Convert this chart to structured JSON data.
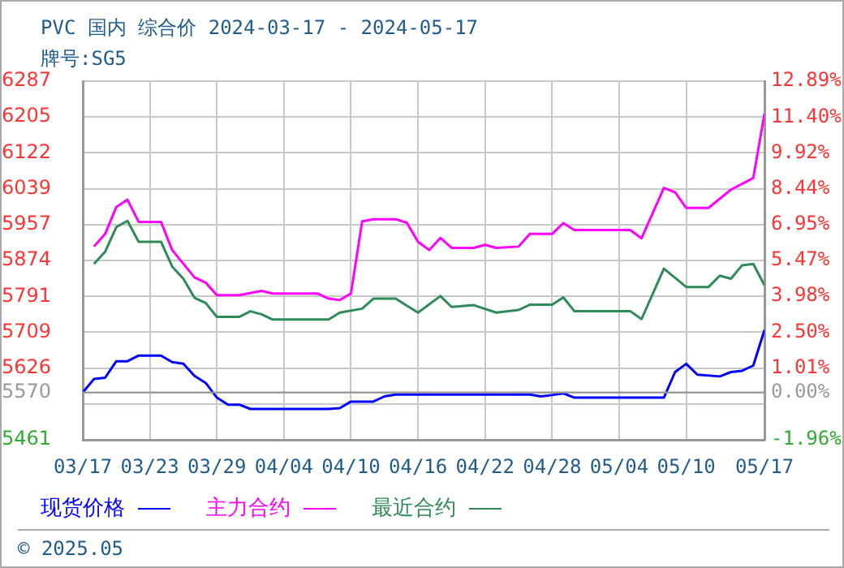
{
  "chart_data": {
    "type": "line",
    "title": "PVC 国内 综合价 2024-03-17 - 2024-05-17",
    "subtitle": "牌号:SG5",
    "series": [
      {
        "name": "现货价格",
        "color": "#0000ff",
        "x": [
          "--03-17",
          "--03-18",
          "--03-19",
          "--03-20",
          "--03-21",
          "--03-22",
          "--03-24",
          "--03-25",
          "--03-26",
          "--03-27",
          "--03-28",
          "--03-29",
          "--03-30",
          "--03-31",
          "--04-01",
          "--04-08",
          "--04-09",
          "--04-10",
          "--04-12",
          "--04-13",
          "--04-14",
          "--04-17",
          "--04-26",
          "--04-27",
          "--04-28",
          "--04-29",
          "--04-30",
          "--05-08",
          "--05-09",
          "--05-10",
          "--05-11",
          "--05-13",
          "--05-14",
          "--05-15",
          "--05-16",
          "--05-17"
        ],
        "values": [
          5570,
          5601,
          5604,
          5642,
          5642,
          5655,
          5655,
          5640,
          5636,
          5608,
          5592,
          5558,
          5542,
          5542,
          5532,
          5532,
          5534,
          5549,
          5549,
          5561,
          5565,
          5565,
          5565,
          5561,
          5564,
          5568,
          5558,
          5558,
          5617,
          5636,
          5611,
          5607,
          5617,
          5620,
          5632,
          5714
        ]
      },
      {
        "name": "主力合约",
        "color": "#ff00ff",
        "x": [
          "--03-18",
          "--03-19",
          "--03-20",
          "--03-21",
          "--03-22",
          "--03-24",
          "--03-25",
          "--03-27",
          "--03-28",
          "--03-29",
          "--03-31",
          "--04-02",
          "--04-03",
          "--04-07",
          "--04-08",
          "--04-09",
          "--04-10",
          "--04-11",
          "--04-12",
          "--04-14",
          "--04-15",
          "--04-16",
          "--04-17",
          "--04-18",
          "--04-19",
          "--04-21",
          "--04-22",
          "--04-23",
          "--04-25",
          "--04-26",
          "--04-28",
          "--04-29",
          "--04-30",
          "--05-05",
          "--05-06",
          "--05-08",
          "--05-09",
          "--05-10",
          "--05-12",
          "--05-14",
          "--05-16",
          "--05-17"
        ],
        "values": [
          5906,
          5935,
          5997,
          6014,
          5963,
          5963,
          5898,
          5835,
          5823,
          5794,
          5794,
          5804,
          5798,
          5798,
          5786,
          5783,
          5798,
          5964,
          5969,
          5969,
          5961,
          5917,
          5898,
          5926,
          5903,
          5903,
          5910,
          5903,
          5906,
          5935,
          5935,
          5960,
          5944,
          5944,
          5925,
          6041,
          6031,
          5995,
          5995,
          6037,
          6064,
          6212
        ]
      },
      {
        "name": "最近合约",
        "color": "#2e8b57",
        "x": [
          "--03-18",
          "--03-19",
          "--03-20",
          "--03-21",
          "--03-22",
          "--03-24",
          "--03-25",
          "--03-26",
          "--03-27",
          "--03-28",
          "--03-29",
          "--03-31",
          "--04-01",
          "--04-02",
          "--04-03",
          "--04-08",
          "--04-09",
          "--04-11",
          "--04-12",
          "--04-14",
          "--04-15",
          "--04-16",
          "--04-18",
          "--04-19",
          "--04-21",
          "--04-23",
          "--04-25",
          "--04-26",
          "--04-28",
          "--04-29",
          "--04-30",
          "--05-05",
          "--05-06",
          "--05-08",
          "--05-10",
          "--05-12",
          "--05-13",
          "--05-14",
          "--05-15",
          "--05-16",
          "--05-17"
        ],
        "values": [
          5866,
          5894,
          5951,
          5965,
          5917,
          5917,
          5860,
          5832,
          5788,
          5776,
          5744,
          5744,
          5757,
          5750,
          5738,
          5738,
          5754,
          5763,
          5786,
          5786,
          5770,
          5754,
          5792,
          5767,
          5771,
          5754,
          5760,
          5772,
          5772,
          5789,
          5757,
          5757,
          5739,
          5855,
          5813,
          5813,
          5839,
          5832,
          5863,
          5866,
          5817
        ]
      }
    ],
    "xlim": [
      "--03-17",
      "--05-17"
    ],
    "xticks": [
      {
        "value": "--03-17",
        "label": "03/17"
      },
      {
        "value": "--03-23",
        "label": "03/23"
      },
      {
        "value": "--03-29",
        "label": "03/29"
      },
      {
        "value": "--04-04",
        "label": "04/04"
      },
      {
        "value": "--04-10",
        "label": "04/10"
      },
      {
        "value": "--04-16",
        "label": "04/16"
      },
      {
        "value": "--04-22",
        "label": "04/22"
      },
      {
        "value": "--04-28",
        "label": "04/28"
      },
      {
        "value": "--05-04",
        "label": "05/04"
      },
      {
        "value": "--05-10",
        "label": "05/10"
      },
      {
        "value": "--05-17",
        "label": "05/17"
      }
    ],
    "ylim": [
      5461,
      6287
    ],
    "yticks": [
      6287,
      6205,
      6122,
      6039,
      5957,
      5874,
      5791,
      5709,
      5626,
      5570,
      {
        "value": 5544,
        "label": null
      },
      5461
    ],
    "y2lim": [
      -1.96,
      12.89
    ],
    "y2ticks": [
      {
        "value": 12.89,
        "label": "12.89%"
      },
      {
        "value": 11.4,
        "label": "11.40%"
      },
      {
        "value": 9.92,
        "label": "9.92%"
      },
      {
        "value": 8.44,
        "label": "8.44%"
      },
      {
        "value": 6.95,
        "label": "6.95%"
      },
      {
        "value": 5.47,
        "label": "5.47%"
      },
      {
        "value": 3.98,
        "label": "3.98%"
      },
      {
        "value": 2.5,
        "label": "2.50%"
      },
      {
        "value": 1.01,
        "label": "1.01%"
      },
      {
        "value": 0,
        "label": "0.00%"
      },
      {
        "value": -1.96,
        "label": "-1.96%"
      }
    ],
    "ref_lines": [
      {
        "axis": "y",
        "value": 5570,
        "color": "#999999",
        "line_style": "solid"
      }
    ],
    "annotations": [
      "© 2025.05"
    ],
    "grid": true,
    "legend": "bottom",
    "marker": "none",
    "line_style": "solid"
  }
}
